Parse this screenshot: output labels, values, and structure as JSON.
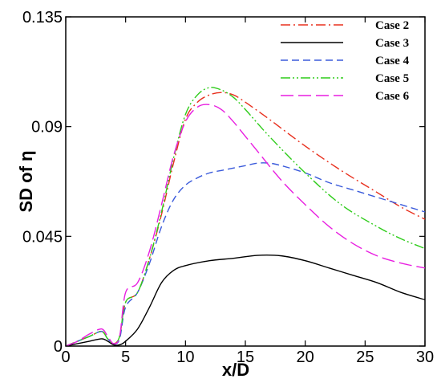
{
  "chart_data": {
    "type": "line",
    "title": "",
    "xlabel": "x/D",
    "ylabel": "SD of η",
    "xlim": [
      0,
      30
    ],
    "ylim": [
      0,
      0.135
    ],
    "xticks": [
      0,
      5,
      10,
      15,
      20,
      25,
      30
    ],
    "xtick_labels": [
      "0",
      "5",
      "10",
      "15",
      "20",
      "25",
      "30"
    ],
    "yticks": [
      0,
      0.045,
      0.09,
      0.135
    ],
    "ytick_labels": [
      "0",
      "0.045",
      "0.09",
      "0.135"
    ],
    "grid": false,
    "legend_position": "top-right",
    "series": [
      {
        "name": "Case 2",
        "color": "#e8301e",
        "dash": "12,4,2,4",
        "x": [
          0,
          1,
          2,
          3,
          3.5,
          4,
          4.5,
          5,
          6,
          7,
          8,
          9,
          10,
          11,
          12,
          13,
          14,
          15,
          17,
          20,
          23,
          26,
          28,
          30
        ],
        "y": [
          0,
          0.002,
          0.004,
          0.006,
          0.003,
          0.001,
          0.004,
          0.018,
          0.022,
          0.036,
          0.054,
          0.075,
          0.093,
          0.1,
          0.103,
          0.104,
          0.103,
          0.1,
          0.093,
          0.082,
          0.072,
          0.063,
          0.057,
          0.052
        ]
      },
      {
        "name": "Case 3",
        "color": "#000000",
        "dash": "",
        "x": [
          0,
          1,
          2,
          3,
          3.5,
          4,
          4.5,
          5,
          6,
          7,
          8,
          9,
          10,
          12,
          14,
          16,
          18,
          20,
          22,
          24,
          26,
          28,
          30
        ],
        "y": [
          0,
          0.001,
          0.002,
          0.003,
          0.002,
          0.0005,
          0.0005,
          0.002,
          0.007,
          0.016,
          0.026,
          0.031,
          0.033,
          0.035,
          0.036,
          0.0372,
          0.037,
          0.035,
          0.032,
          0.029,
          0.026,
          0.022,
          0.019
        ]
      },
      {
        "name": "Case 4",
        "color": "#3b5bdb",
        "dash": "9,5",
        "x": [
          0,
          1,
          2,
          3,
          3.5,
          4,
          4.5,
          5,
          6,
          7,
          8,
          9,
          10,
          11,
          12,
          13,
          14,
          15,
          16,
          17,
          18,
          20,
          22,
          24,
          26,
          28,
          30
        ],
        "y": [
          0,
          0.002,
          0.004,
          0.006,
          0.003,
          0.001,
          0.003,
          0.016,
          0.022,
          0.034,
          0.049,
          0.06,
          0.066,
          0.069,
          0.071,
          0.072,
          0.073,
          0.074,
          0.075,
          0.075,
          0.074,
          0.071,
          0.067,
          0.064,
          0.061,
          0.058,
          0.055
        ]
      },
      {
        "name": "Case 5",
        "color": "#2ecc1a",
        "dash": "12,3,2,3,2,3",
        "x": [
          0,
          1,
          2,
          3,
          3.5,
          4,
          4.5,
          5,
          6,
          7,
          8,
          9,
          10,
          11,
          12,
          13,
          14,
          15,
          17,
          20,
          23,
          26,
          28,
          30
        ],
        "y": [
          0,
          0.002,
          0.004,
          0.006,
          0.003,
          0.001,
          0.004,
          0.018,
          0.022,
          0.036,
          0.055,
          0.077,
          0.095,
          0.103,
          0.106,
          0.105,
          0.102,
          0.097,
          0.086,
          0.071,
          0.058,
          0.049,
          0.044,
          0.04
        ]
      },
      {
        "name": "Case 6",
        "color": "#e81ee0",
        "dash": "16,6",
        "x": [
          0,
          1,
          2,
          3,
          3.5,
          4,
          4.5,
          5,
          6,
          7,
          8,
          9,
          10,
          11,
          12,
          13,
          14,
          15,
          16,
          18,
          20,
          22,
          24,
          26,
          28,
          30
        ],
        "y": [
          0,
          0.002,
          0.005,
          0.007,
          0.004,
          0.001,
          0.004,
          0.022,
          0.026,
          0.039,
          0.058,
          0.078,
          0.092,
          0.098,
          0.099,
          0.097,
          0.092,
          0.086,
          0.08,
          0.068,
          0.058,
          0.049,
          0.042,
          0.037,
          0.034,
          0.032
        ]
      }
    ]
  }
}
